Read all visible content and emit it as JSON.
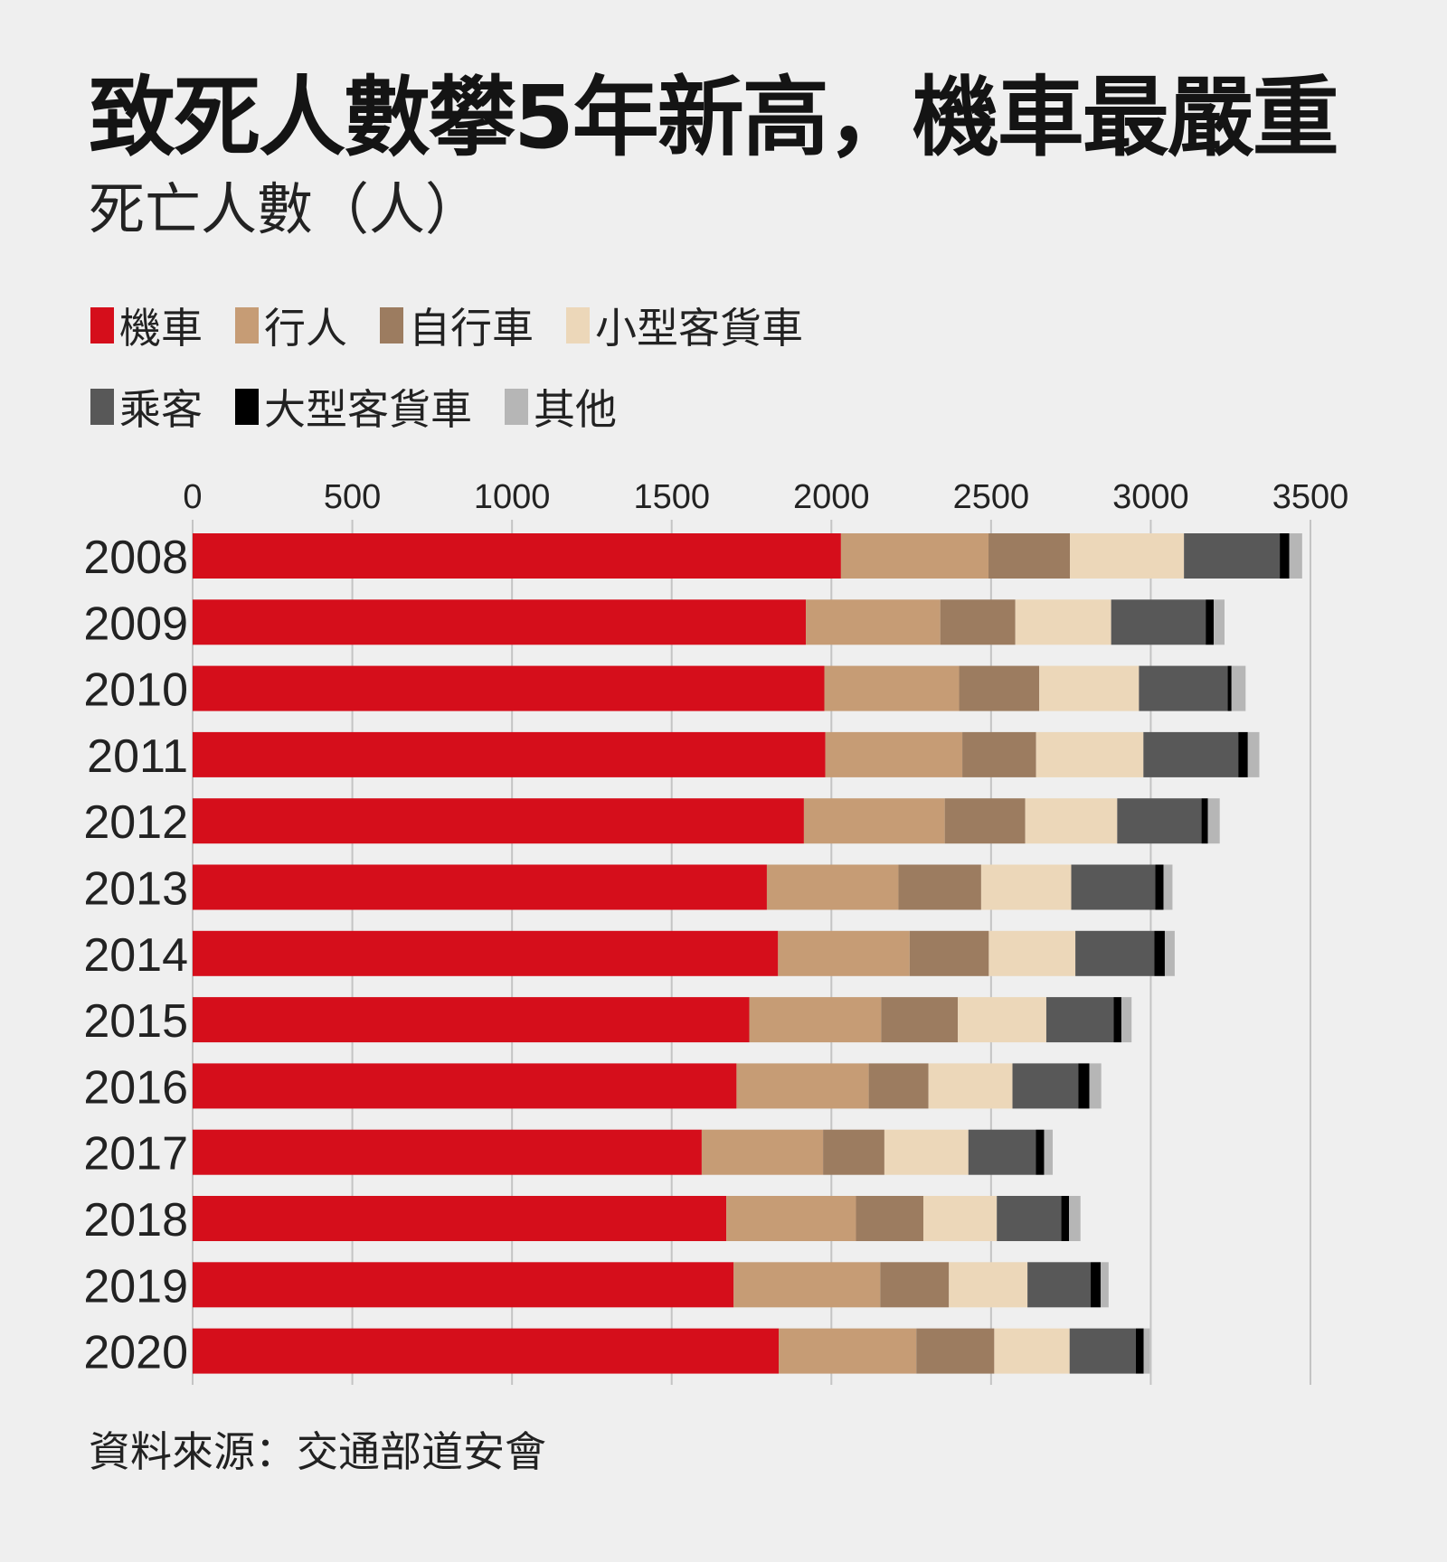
{
  "title": "致死人數攀5年新高，機車最嚴重",
  "subtitle": "死亡人數（人）",
  "source": "資料來源：交通部道安會",
  "legend": {
    "row1": [
      {
        "label": "機車",
        "color": "#d50e1b"
      },
      {
        "label": "行人",
        "color": "#c69c75"
      },
      {
        "label": "自行車",
        "color": "#9c7c60"
      },
      {
        "label": "小型客貨車",
        "color": "#ecd7b9"
      }
    ],
    "row2": [
      {
        "label": "乘客",
        "color": "#585858"
      },
      {
        "label": "大型客貨車",
        "color": "#000000"
      },
      {
        "label": "其他",
        "color": "#b6b6b6"
      }
    ]
  },
  "chart_data": {
    "type": "bar",
    "orientation": "horizontal",
    "stacked": true,
    "title": "致死人數攀5年新高，機車最嚴重",
    "ylabel": "死亡人數（人）",
    "xlim": [
      0,
      3500
    ],
    "xticks": [
      "0",
      "500",
      "1000",
      "1500",
      "2000",
      "2500",
      "3000",
      "3500"
    ],
    "gridlines": true,
    "legend_position": "top",
    "categories": [
      "2008",
      "2009",
      "2010",
      "2011",
      "2012",
      "2013",
      "2014",
      "2015",
      "2016",
      "2017",
      "2018",
      "2019",
      "2020"
    ],
    "series": [
      {
        "name": "機車",
        "color": "#d50e1b",
        "values": [
          2030,
          1920,
          1978,
          1981,
          1914,
          1798,
          1833,
          1743,
          1703,
          1594,
          1671,
          1694,
          1835
        ]
      },
      {
        "name": "行人",
        "color": "#c69c75",
        "values": [
          462,
          421,
          422,
          429,
          441,
          412,
          412,
          413,
          414,
          380,
          406,
          459,
          431
        ]
      },
      {
        "name": "自行車",
        "color": "#9c7c60",
        "values": [
          255,
          235,
          251,
          231,
          252,
          259,
          248,
          240,
          187,
          192,
          211,
          215,
          244
        ]
      },
      {
        "name": "小型客貨車",
        "color": "#ecd7b9",
        "values": [
          357,
          300,
          312,
          336,
          288,
          282,
          271,
          277,
          263,
          263,
          230,
          246,
          236
        ]
      },
      {
        "name": "乘客",
        "color": "#585858",
        "values": [
          300,
          296,
          278,
          297,
          264,
          263,
          247,
          211,
          206,
          211,
          202,
          198,
          207
        ]
      },
      {
        "name": "大型客貨車",
        "color": "#000000",
        "values": [
          30,
          25,
          12,
          30,
          20,
          26,
          33,
          24,
          35,
          26,
          24,
          31,
          25
        ]
      },
      {
        "name": "其他",
        "color": "#b6b6b6",
        "values": [
          40,
          34,
          44,
          36,
          37,
          28,
          31,
          32,
          37,
          27,
          36,
          25,
          19
        ]
      }
    ]
  }
}
